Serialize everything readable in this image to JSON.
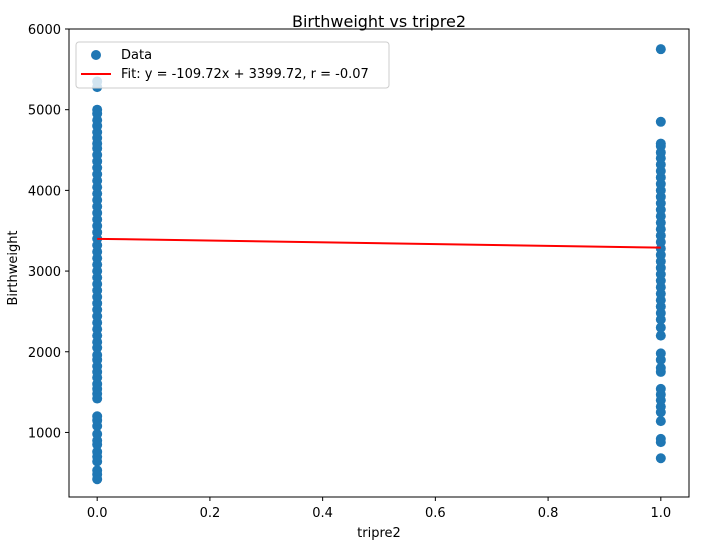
{
  "chart_data": {
    "type": "scatter",
    "title": "Birthweight vs tripre2",
    "xlabel": "tripre2",
    "ylabel": "Birthweight",
    "xlim": [
      -0.05,
      1.05
    ],
    "ylim": [
      200,
      6000
    ],
    "xticks": [
      "0.0",
      "0.2",
      "0.4",
      "0.6",
      "0.8",
      "1.0"
    ],
    "xtick_values": [
      0,
      0.2,
      0.4,
      0.6,
      0.8,
      1.0
    ],
    "yticks": [
      "1000",
      "2000",
      "3000",
      "4000",
      "5000",
      "6000"
    ],
    "ytick_values": [
      1000,
      2000,
      3000,
      4000,
      5000,
      6000
    ],
    "grid": false,
    "legend_position": "top-left",
    "colors": {
      "points": "#1f77b4",
      "fit": "#ff0000"
    },
    "series": [
      {
        "name": "Data",
        "kind": "scatter",
        "points": [
          [
            0,
            420
          ],
          [
            0,
            480
          ],
          [
            0,
            530
          ],
          [
            0,
            640
          ],
          [
            0,
            700
          ],
          [
            0,
            760
          ],
          [
            0,
            850
          ],
          [
            0,
            900
          ],
          [
            0,
            980
          ],
          [
            0,
            1080
          ],
          [
            0,
            1150
          ],
          [
            0,
            1200
          ],
          [
            0,
            1420
          ],
          [
            0,
            1480
          ],
          [
            0,
            1540
          ],
          [
            0,
            1600
          ],
          [
            0,
            1680
          ],
          [
            0,
            1750
          ],
          [
            0,
            1820
          ],
          [
            0,
            1900
          ],
          [
            0,
            1960
          ],
          [
            0,
            2050
          ],
          [
            0,
            2120
          ],
          [
            0,
            2200
          ],
          [
            0,
            2280
          ],
          [
            0,
            2360
          ],
          [
            0,
            2440
          ],
          [
            0,
            2520
          ],
          [
            0,
            2600
          ],
          [
            0,
            2680
          ],
          [
            0,
            2760
          ],
          [
            0,
            2840
          ],
          [
            0,
            2920
          ],
          [
            0,
            3000
          ],
          [
            0,
            3080
          ],
          [
            0,
            3160
          ],
          [
            0,
            3240
          ],
          [
            0,
            3320
          ],
          [
            0,
            3400
          ],
          [
            0,
            3480
          ],
          [
            0,
            3560
          ],
          [
            0,
            3640
          ],
          [
            0,
            3720
          ],
          [
            0,
            3800
          ],
          [
            0,
            3880
          ],
          [
            0,
            3960
          ],
          [
            0,
            4040
          ],
          [
            0,
            4120
          ],
          [
            0,
            4200
          ],
          [
            0,
            4280
          ],
          [
            0,
            4360
          ],
          [
            0,
            4440
          ],
          [
            0,
            4520
          ],
          [
            0,
            4580
          ],
          [
            0,
            4650
          ],
          [
            0,
            4720
          ],
          [
            0,
            4800
          ],
          [
            0,
            4870
          ],
          [
            0,
            4950
          ],
          [
            0,
            5000
          ],
          [
            0,
            5280
          ],
          [
            0,
            5350
          ],
          [
            1,
            680
          ],
          [
            1,
            880
          ],
          [
            1,
            920
          ],
          [
            1,
            1140
          ],
          [
            1,
            1250
          ],
          [
            1,
            1320
          ],
          [
            1,
            1400
          ],
          [
            1,
            1470
          ],
          [
            1,
            1540
          ],
          [
            1,
            1750
          ],
          [
            1,
            1800
          ],
          [
            1,
            1900
          ],
          [
            1,
            1980
          ],
          [
            1,
            2200
          ],
          [
            1,
            2300
          ],
          [
            1,
            2400
          ],
          [
            1,
            2480
          ],
          [
            1,
            2560
          ],
          [
            1,
            2640
          ],
          [
            1,
            2720
          ],
          [
            1,
            2800
          ],
          [
            1,
            2880
          ],
          [
            1,
            2960
          ],
          [
            1,
            3040
          ],
          [
            1,
            3120
          ],
          [
            1,
            3200
          ],
          [
            1,
            3280
          ],
          [
            1,
            3360
          ],
          [
            1,
            3440
          ],
          [
            1,
            3520
          ],
          [
            1,
            3600
          ],
          [
            1,
            3680
          ],
          [
            1,
            3760
          ],
          [
            1,
            3840
          ],
          [
            1,
            3920
          ],
          [
            1,
            4000
          ],
          [
            1,
            4080
          ],
          [
            1,
            4160
          ],
          [
            1,
            4240
          ],
          [
            1,
            4320
          ],
          [
            1,
            4400
          ],
          [
            1,
            4470
          ],
          [
            1,
            4550
          ],
          [
            1,
            4580
          ],
          [
            1,
            4850
          ],
          [
            1,
            5750
          ]
        ]
      },
      {
        "name": "Fit: y = -109.72x + 3399.72, r = -0.07",
        "kind": "line",
        "x": [
          0,
          1
        ],
        "y": [
          3399.72,
          3290.0
        ]
      }
    ]
  }
}
